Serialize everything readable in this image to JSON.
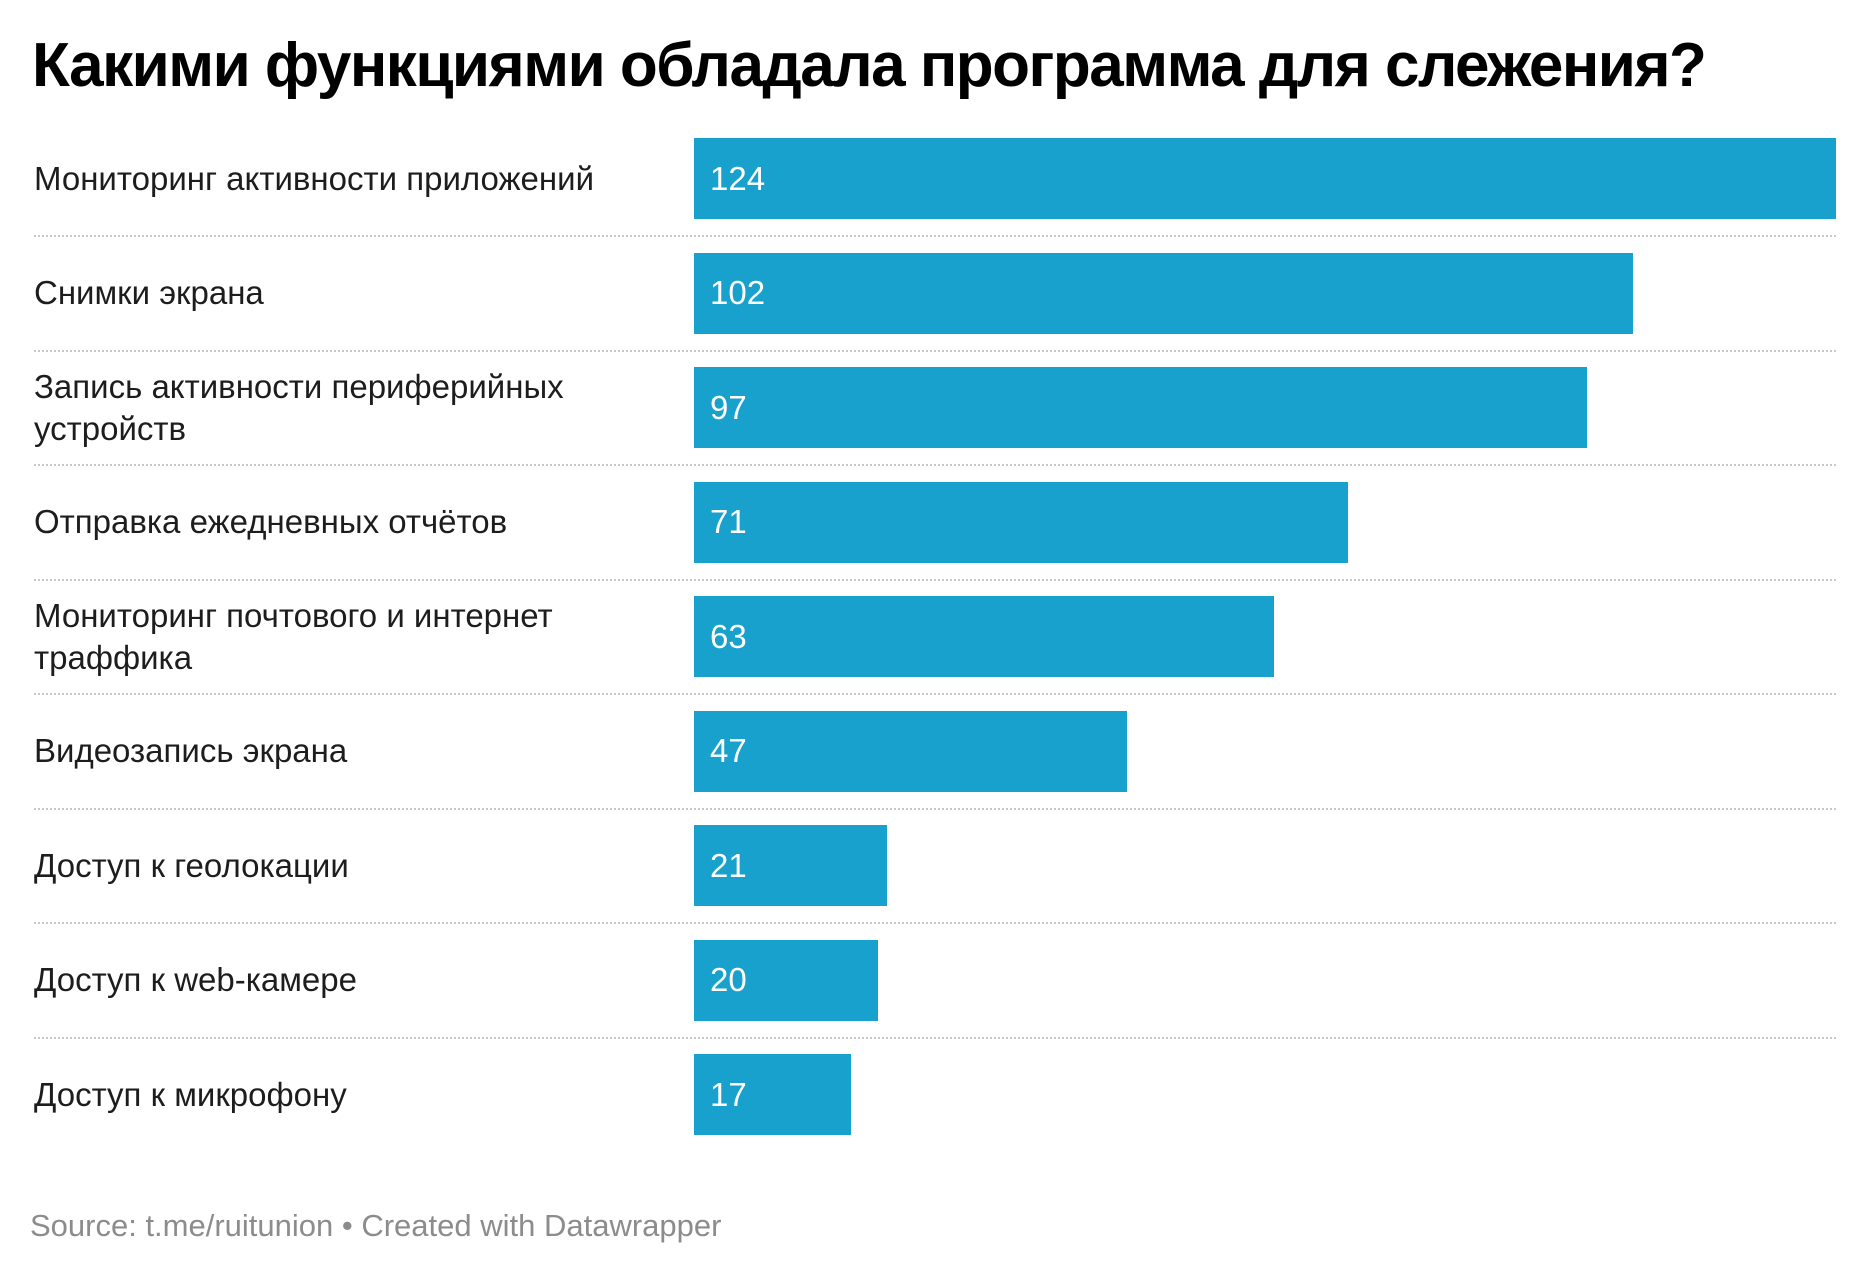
{
  "chart_data": {
    "type": "bar",
    "orientation": "horizontal",
    "title": "Какими функциями обладала программа для слежения?",
    "categories": [
      "Мониторинг активности приложений",
      "Снимки экрана",
      "Запись активности периферийных устройств",
      "Отправка ежедневных отчётов",
      "Мониторинг почтового и интернет траффика",
      "Видеозапись экрана",
      "Доступ к геолокации",
      "Доступ к web-камере",
      "Доступ к микрофону"
    ],
    "values": [
      124,
      102,
      97,
      71,
      63,
      47,
      21,
      20,
      17
    ],
    "xlim": [
      0,
      124
    ],
    "bar_color": "#18a1cd",
    "data_labels": "inside-left",
    "grid": false
  },
  "footer": {
    "source": "Source: t.me/ruitunion • Created with Datawrapper"
  }
}
